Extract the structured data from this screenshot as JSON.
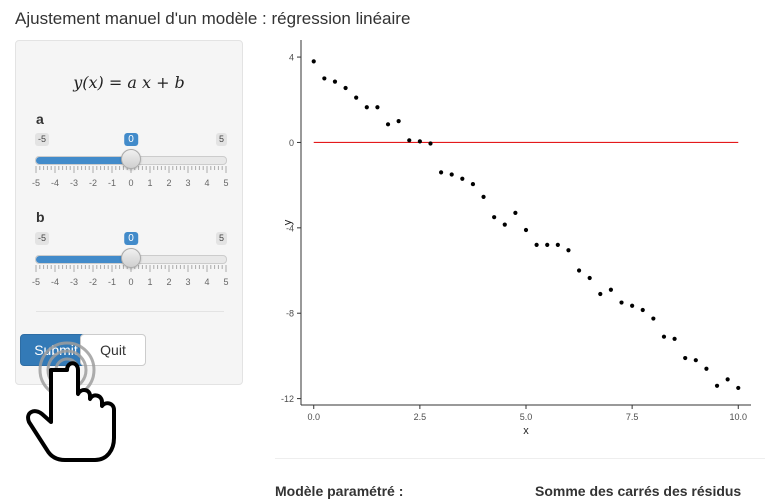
{
  "page": {
    "title": "Ajustement manuel d'un modèle : régression linéaire"
  },
  "sidebar": {
    "formula": "y(x) = a x + b",
    "sliders": [
      {
        "label": "a",
        "min": -5,
        "max": 5,
        "value": 0,
        "min_label": "-5",
        "max_label": "5",
        "value_label": "0"
      },
      {
        "label": "b",
        "min": -5,
        "max": 5,
        "value": 0,
        "min_label": "-5",
        "max_label": "5",
        "value_label": "0"
      }
    ],
    "tick_labels": [
      "-5",
      "-4",
      "-3",
      "-2",
      "-1",
      "0",
      "1",
      "2",
      "3",
      "4",
      "5"
    ],
    "buttons": {
      "submit": "Submit",
      "quit": "Quit"
    }
  },
  "chart_data": {
    "type": "scatter",
    "xlabel": "x",
    "ylabel": "y",
    "xlim": [
      -0.3,
      10.3
    ],
    "ylim": [
      -12.3,
      4.8
    ],
    "x_ticks": [
      0.0,
      2.5,
      5.0,
      7.5,
      10.0
    ],
    "x_tick_labels": [
      "0.0",
      "2.5",
      "5.0",
      "7.5",
      "10.0"
    ],
    "y_ticks": [
      4,
      0,
      -4,
      -8,
      -12
    ],
    "y_tick_labels": [
      "4",
      "0",
      "-4",
      "-8",
      "-12"
    ],
    "points": {
      "x": [
        0,
        0.25,
        0.5,
        0.75,
        1.0,
        1.25,
        1.5,
        1.75,
        2.0,
        2.25,
        2.5,
        2.75,
        3.0,
        3.25,
        3.5,
        3.75,
        4.0,
        4.25,
        4.5,
        4.75,
        5.0,
        5.25,
        5.5,
        5.75,
        6.0,
        6.25,
        6.5,
        6.75,
        7.0,
        7.25,
        7.5,
        7.75,
        8.0,
        8.25,
        8.5,
        8.75,
        9.0,
        9.25,
        9.5,
        9.75,
        10.0
      ],
      "y": [
        3.8,
        3.0,
        2.85,
        2.55,
        2.1,
        1.65,
        1.65,
        0.85,
        1.0,
        0.1,
        0.05,
        -0.05,
        -1.4,
        -1.5,
        -1.7,
        -1.95,
        -2.55,
        -3.5,
        -3.85,
        -3.3,
        -4.1,
        -4.8,
        -4.8,
        -4.8,
        -5.05,
        -6.0,
        -6.35,
        -7.1,
        -6.9,
        -7.5,
        -7.65,
        -7.85,
        -8.25,
        -9.1,
        -9.2,
        -10.1,
        -10.2,
        -10.6,
        -11.4,
        -11.1,
        -11.5
      ],
      "color": "#000000"
    },
    "fit_line": {
      "a": 0,
      "b": 0,
      "x_range": [
        0,
        10
      ],
      "color": "#e41a1c"
    }
  },
  "results": {
    "left_heading": "Modèle paramétré :",
    "right_heading": "Somme des carrés des résidus"
  }
}
